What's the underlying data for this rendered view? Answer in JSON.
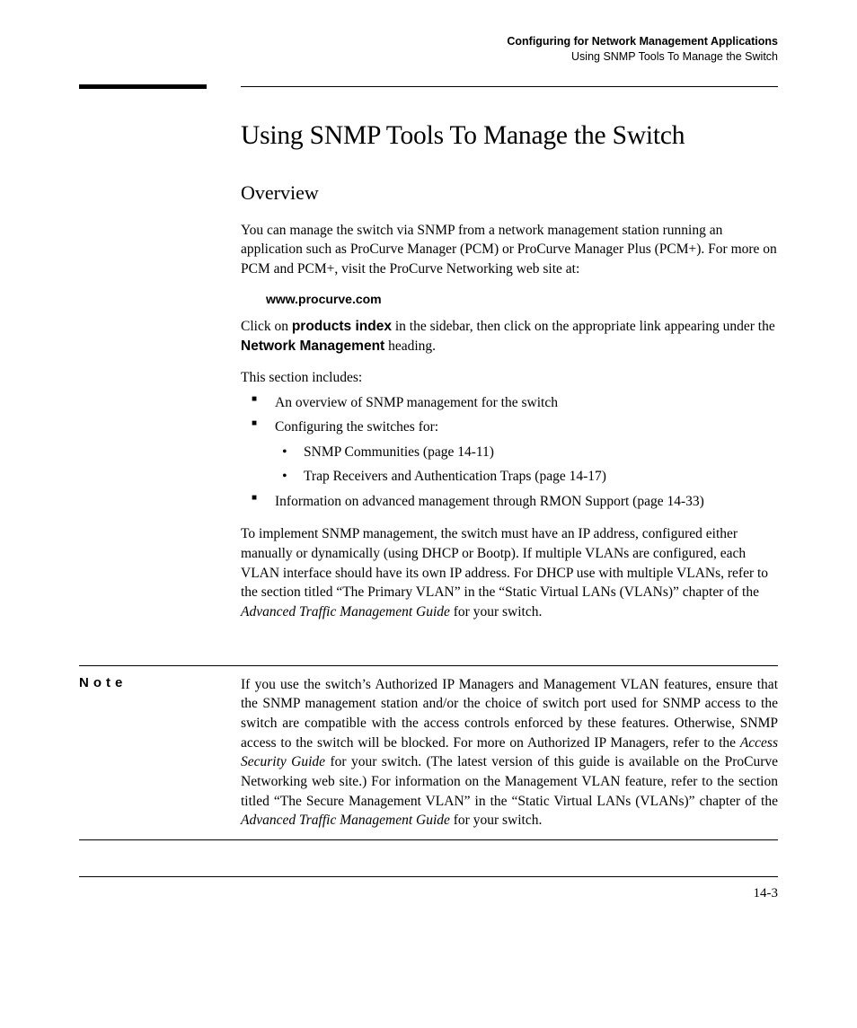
{
  "header": {
    "chapter": "Configuring for Network Management Applications",
    "section": "Using SNMP Tools To Manage the Switch"
  },
  "h1": "Using SNMP Tools To Manage the Switch",
  "h2": "Overview",
  "p1": "You can manage the switch via SNMP from a network management station running an application such as ProCurve Manager (PCM) or ProCurve Manager Plus (PCM+). For more on PCM and PCM+, visit the ProCurve Networking web site at:",
  "url": "www.procurve.com",
  "p2a": "Click on ",
  "p2b": "products index",
  "p2c": " in the sidebar, then click on the appropriate link appearing under the ",
  "p2d": "Network Management",
  "p2e": " heading.",
  "p3": "This section includes:",
  "li1": "An overview of SNMP management for the switch",
  "li2": "Configuring the switches for:",
  "li2a": "SNMP Communities (page 14-11)",
  "li2b": "Trap Receivers and Authentication Traps (page 14-17)",
  "li3": "Information on advanced management through RMON Support (page 14-33)",
  "p4a": "To implement SNMP management, the switch must have an IP address, configured either manually or dynamically (using DHCP or Bootp). If multiple VLANs are configured, each VLAN interface should have its own IP address. For DHCP use with multiple VLANs, refer to the section titled “The Primary VLAN” in the “Static Virtual LANs (VLANs)” chapter of the ",
  "p4b": "Advanced Traffic Management Guide",
  "p4c": " for your switch.",
  "noteLabel": "Note",
  "n1": "If you use the switch’s Authorized IP Managers and Management VLAN features, ensure that the SNMP management station and/or the choice of switch port used for SNMP access to the switch are compatible with the access controls enforced by these features. Otherwise, SNMP access to the switch will be blocked. For more on Authorized IP Managers, refer to the ",
  "n2": "Access Security Guide",
  "n3": " for your switch. (The latest version of this guide is available on the ProCurve Networking web site.) For information on the Management VLAN feature, refer to the section titled “The Secure Management VLAN” in the “Static Virtual LANs (VLANs)” chapter of the ",
  "n4": "Advanced Traffic Management Guide",
  "n5": " for your switch.",
  "pageNum": "14-3"
}
